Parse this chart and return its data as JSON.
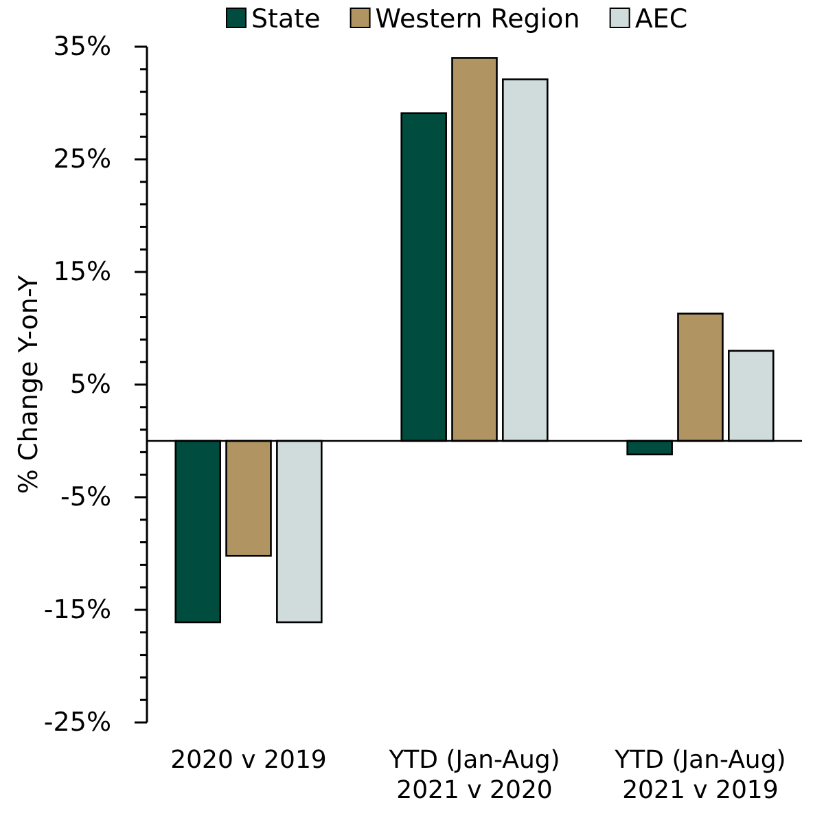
{
  "chart_data": {
    "type": "bar",
    "ylabel": "% Change Y-on-Y",
    "categories": [
      "2020 v 2019",
      "YTD (Jan-Aug)\n2021 v 2020",
      "YTD (Jan-Aug)\n2021 v 2019"
    ],
    "series": [
      {
        "name": "State",
        "color": "#004d40",
        "values": [
          -16.1,
          29.1,
          -1.2
        ]
      },
      {
        "name": "Western Region",
        "color": "#b09462",
        "values": [
          -10.2,
          34.0,
          11.3
        ]
      },
      {
        "name": "AEC",
        "color": "#cfdcdb",
        "values": [
          -16.1,
          32.1,
          8.0
        ]
      }
    ],
    "ylim": [
      -25,
      35
    ],
    "yticks": [
      {
        "value": -25,
        "label": "-25%"
      },
      {
        "value": -23,
        "label": null
      },
      {
        "value": -21,
        "label": null
      },
      {
        "value": -19,
        "label": null
      },
      {
        "value": -17,
        "label": null
      },
      {
        "value": -15,
        "label": "-15%"
      },
      {
        "value": -13,
        "label": null
      },
      {
        "value": -11,
        "label": null
      },
      {
        "value": -9,
        "label": null
      },
      {
        "value": -7,
        "label": null
      },
      {
        "value": -5,
        "label": "-5%"
      },
      {
        "value": -3,
        "label": null
      },
      {
        "value": -1,
        "label": null
      },
      {
        "value": 1,
        "label": null
      },
      {
        "value": 3,
        "label": null
      },
      {
        "value": 5,
        "label": "5%"
      },
      {
        "value": 7,
        "label": null
      },
      {
        "value": 9,
        "label": null
      },
      {
        "value": 11,
        "label": null
      },
      {
        "value": 13,
        "label": null
      },
      {
        "value": 15,
        "label": "15%"
      },
      {
        "value": 17,
        "label": null
      },
      {
        "value": 19,
        "label": null
      },
      {
        "value": 21,
        "label": null
      },
      {
        "value": 23,
        "label": null
      },
      {
        "value": 25,
        "label": "25%"
      },
      {
        "value": 27,
        "label": null
      },
      {
        "value": 29,
        "label": null
      },
      {
        "value": 31,
        "label": null
      },
      {
        "value": 33,
        "label": null
      },
      {
        "value": 35,
        "label": "35%"
      }
    ],
    "legend": "top",
    "grid": false
  }
}
